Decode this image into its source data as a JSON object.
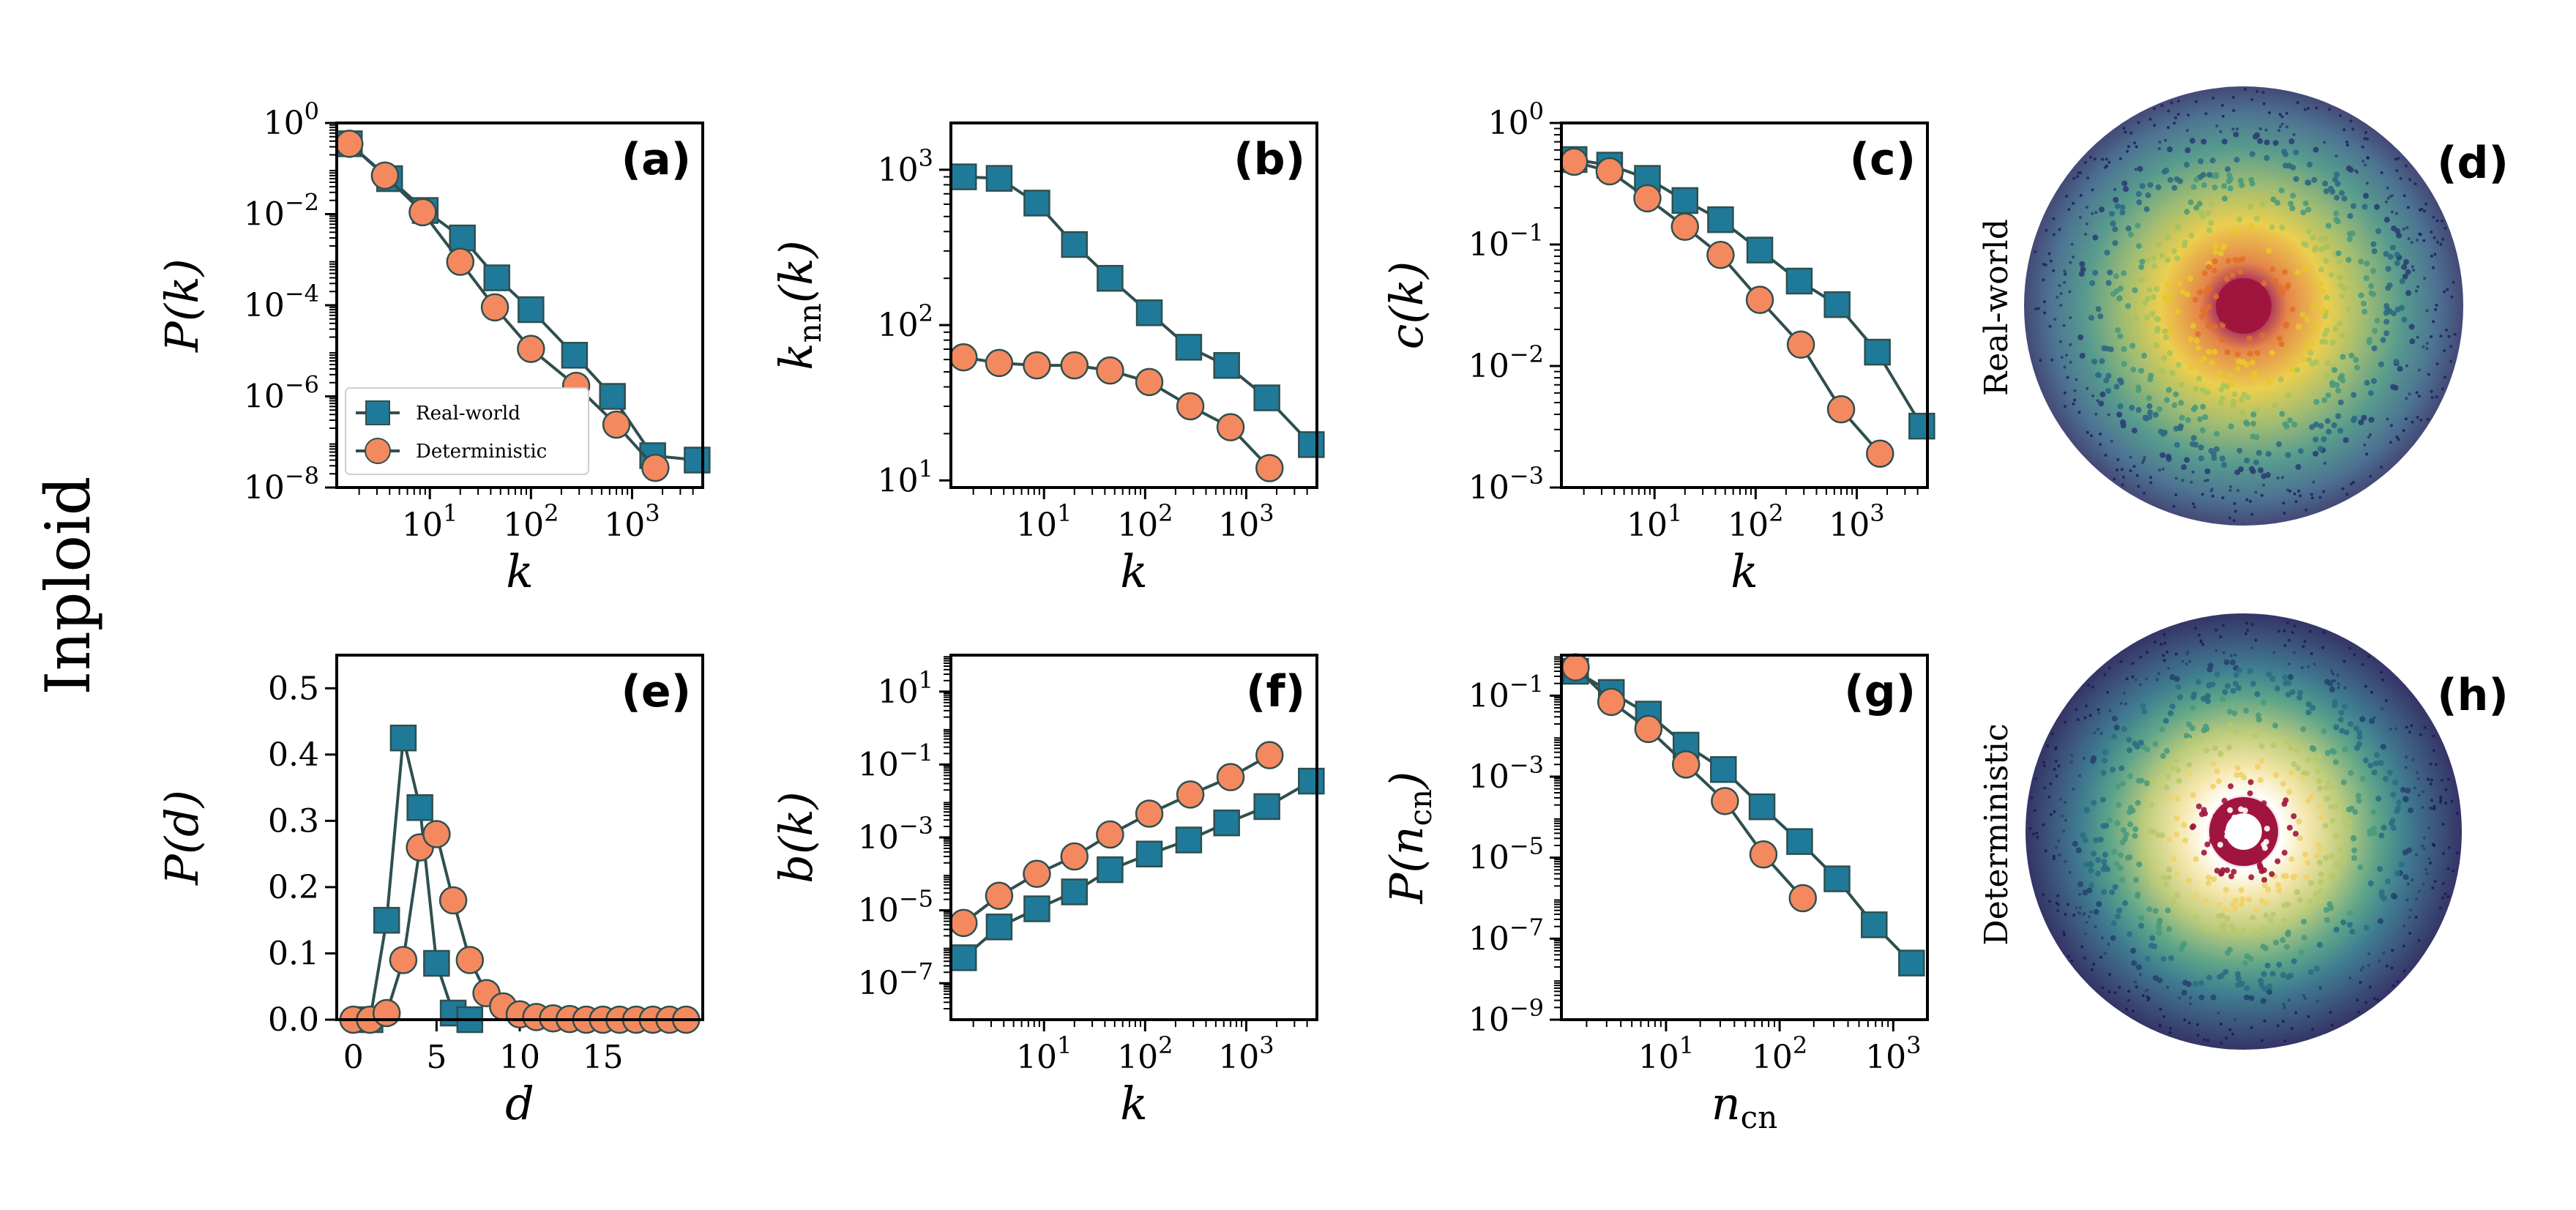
{
  "figure": {
    "row_label": "Inploid",
    "colors": {
      "real_world": "#1f7a99",
      "deterministic": "#f4895f",
      "edge": "#2f4f4f",
      "axis": "#000000"
    },
    "legend": {
      "real_world": "Real-world",
      "deterministic": "Deterministic"
    },
    "network_panels": [
      {
        "label": "(d)",
        "side_label": "Real-world"
      },
      {
        "label": "(h)",
        "side_label": "Deterministic"
      }
    ]
  },
  "chart_data": [
    {
      "id": "a",
      "label": "(a)",
      "type": "line",
      "xscale": "log",
      "yscale": "log",
      "xlim": [
        1.2,
        5000
      ],
      "ylim": [
        1e-08,
        1
      ],
      "xticks": [
        10,
        100,
        1000
      ],
      "xtick_labels": [
        "10^1",
        "10^2",
        "10^3"
      ],
      "yticks": [
        1e-08,
        1e-06,
        0.0001,
        0.01,
        1
      ],
      "ytick_labels": [
        "10^−8",
        "10^−6",
        "10^−4",
        "10^−2",
        "10^0"
      ],
      "xlabel": "k",
      "ylabel": "P(k)",
      "legend": true,
      "series": [
        {
          "name": "Real-world",
          "x": [
            1.6,
            4,
            9,
            21,
            46,
            100,
            270,
            640,
            1600,
            4400
          ],
          "y": [
            0.35,
            0.06,
            0.012,
            0.003,
            0.0004,
            8e-05,
            8e-06,
            1e-06,
            5e-08,
            4e-08
          ]
        },
        {
          "name": "Deterministic",
          "x": [
            1.6,
            3.6,
            8.5,
            20,
            44,
            100,
            280,
            700,
            1700
          ],
          "y": [
            0.35,
            0.07,
            0.011,
            0.0009,
            9e-05,
            1.1e-05,
            1.7e-06,
            2.4e-07,
            2.7e-08
          ]
        }
      ]
    },
    {
      "id": "b",
      "label": "(b)",
      "type": "line",
      "xscale": "log",
      "yscale": "log",
      "xlim": [
        1.2,
        5000
      ],
      "ylim": [
        9,
        2000
      ],
      "xticks": [
        10,
        100,
        1000
      ],
      "xtick_labels": [
        "10^1",
        "10^2",
        "10^3"
      ],
      "yticks": [
        10,
        100,
        1000
      ],
      "ytick_labels": [
        "10^1",
        "10^2",
        "10^3"
      ],
      "xlabel": "k",
      "ylabel": "k_nn(k)",
      "legend": false,
      "series": [
        {
          "name": "Real-world",
          "x": [
            1.6,
            3.6,
            8.5,
            20,
            45,
            110,
            270,
            640,
            1600,
            4400
          ],
          "y": [
            900,
            880,
            610,
            330,
            200,
            120,
            72,
            55,
            34,
            17
          ]
        },
        {
          "name": "Deterministic",
          "x": [
            1.6,
            3.6,
            8.5,
            20,
            45,
            110,
            280,
            700,
            1700
          ],
          "y": [
            62,
            57,
            55,
            55,
            51,
            43,
            30,
            22,
            12
          ]
        }
      ]
    },
    {
      "id": "c",
      "label": "(c)",
      "type": "line",
      "xscale": "log",
      "yscale": "log",
      "xlim": [
        1.2,
        5000
      ],
      "ylim": [
        0.001,
        1
      ],
      "xticks": [
        10,
        100,
        1000
      ],
      "xtick_labels": [
        "10^1",
        "10^2",
        "10^3"
      ],
      "yticks": [
        0.001,
        0.01,
        0.1,
        1
      ],
      "ytick_labels": [
        "10^−3",
        "10^−2",
        "10^−1",
        "10^0"
      ],
      "xlabel": "k",
      "ylabel": "c(k)",
      "legend": false,
      "series": [
        {
          "name": "Real-world",
          "x": [
            1.6,
            3.6,
            8.5,
            20,
            45,
            110,
            270,
            640,
            1600,
            4400
          ],
          "y": [
            0.5,
            0.45,
            0.35,
            0.23,
            0.16,
            0.09,
            0.05,
            0.032,
            0.013,
            0.0032
          ]
        },
        {
          "name": "Deterministic",
          "x": [
            1.6,
            3.6,
            8.5,
            20,
            45,
            110,
            280,
            700,
            1700
          ],
          "y": [
            0.48,
            0.4,
            0.24,
            0.14,
            0.082,
            0.035,
            0.015,
            0.0044,
            0.0019
          ]
        }
      ]
    },
    {
      "id": "e",
      "label": "(e)",
      "type": "line",
      "xscale": "linear",
      "yscale": "linear",
      "xlim": [
        -1,
        21
      ],
      "ylim": [
        0,
        0.55
      ],
      "xticks": [
        0,
        5,
        10,
        15
      ],
      "xtick_labels": [
        "0",
        "5",
        "10",
        "15"
      ],
      "yticks": [
        0,
        0.1,
        0.2,
        0.3,
        0.4,
        0.5
      ],
      "ytick_labels": [
        "0.0",
        "0.1",
        "0.2",
        "0.3",
        "0.4",
        "0.5"
      ],
      "xlabel": "d",
      "ylabel": "P(d)",
      "legend": false,
      "series": [
        {
          "name": "Real-world",
          "x": [
            1,
            2,
            3,
            4,
            5,
            6,
            7
          ],
          "y": [
            0.0,
            0.15,
            0.425,
            0.32,
            0.085,
            0.01,
            0.0
          ]
        },
        {
          "name": "Deterministic",
          "x": [
            0,
            1,
            2,
            3,
            4,
            5,
            6,
            7,
            8,
            9,
            10,
            11,
            12,
            13,
            14,
            15,
            16,
            17,
            18,
            19,
            20
          ],
          "y": [
            0.0,
            0.0,
            0.01,
            0.09,
            0.26,
            0.28,
            0.18,
            0.09,
            0.04,
            0.02,
            0.008,
            0.004,
            0.002,
            0.001,
            0.0,
            0.0,
            0.0,
            0.0,
            0.0,
            0.0,
            0.0
          ]
        }
      ]
    },
    {
      "id": "f",
      "label": "(f)",
      "type": "line",
      "xscale": "log",
      "yscale": "log",
      "xlim": [
        1.2,
        5000
      ],
      "ylim": [
        1e-08,
        100
      ],
      "xticks": [
        10,
        100,
        1000
      ],
      "xtick_labels": [
        "10^1",
        "10^2",
        "10^3"
      ],
      "yticks": [
        1e-07,
        1e-05,
        0.001,
        0.1,
        10
      ],
      "ytick_labels": [
        "10^−7",
        "10^−5",
        "10^−3",
        "10^−1",
        "10^1"
      ],
      "xlabel": "k",
      "ylabel": "b(k)",
      "legend": false,
      "series": [
        {
          "name": "Real-world",
          "x": [
            1.6,
            3.6,
            8.5,
            20,
            45,
            110,
            270,
            640,
            1600,
            4400
          ],
          "y": [
            5e-07,
            3.5e-06,
            1.1e-05,
            3.2e-05,
            0.00013,
            0.00035,
            0.00085,
            0.0025,
            0.007,
            0.035
          ]
        },
        {
          "name": "Deterministic",
          "x": [
            1.6,
            3.6,
            8.5,
            20,
            45,
            110,
            280,
            700,
            1700
          ],
          "y": [
            4.5e-06,
            2.5e-05,
            0.0001,
            0.0003,
            0.0012,
            0.0045,
            0.015,
            0.045,
            0.18
          ]
        }
      ]
    },
    {
      "id": "g",
      "label": "(g)",
      "type": "line",
      "xscale": "log",
      "yscale": "log",
      "xlim": [
        1.2,
        2000
      ],
      "ylim": [
        1e-09,
        1
      ],
      "xticks": [
        10,
        100,
        1000
      ],
      "xtick_labels": [
        "10^1",
        "10^2",
        "10^3"
      ],
      "yticks": [
        1e-09,
        1e-07,
        1e-05,
        0.001,
        0.1
      ],
      "ytick_labels": [
        "10^−9",
        "10^−7",
        "10^−5",
        "10^−3",
        "10^−1"
      ],
      "xlabel": "n_cn",
      "ylabel": "P(n_cn)",
      "legend": false,
      "series": [
        {
          "name": "Real-world",
          "x": [
            1.6,
            3.3,
            7,
            15,
            32,
            70,
            150,
            320,
            680,
            1450
          ],
          "y": [
            0.4,
            0.12,
            0.035,
            0.006,
            0.0015,
            0.00018,
            2.5e-05,
            3e-06,
            2.2e-07,
            2.5e-08
          ]
        },
        {
          "name": "Deterministic",
          "x": [
            1.6,
            3.3,
            7,
            15,
            33,
            72,
            160
          ],
          "y": [
            0.5,
            0.07,
            0.015,
            0.002,
            0.00025,
            1.2e-05,
            1e-06
          ]
        }
      ]
    }
  ]
}
